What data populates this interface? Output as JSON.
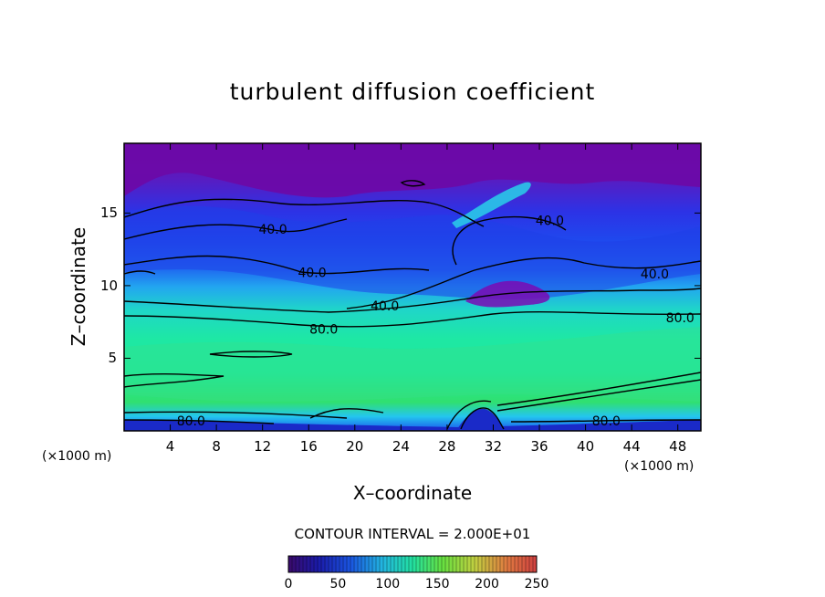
{
  "chart_data": {
    "type": "heatmap",
    "title": "turbulent diffusion coefficient",
    "xlabel": "X–coordinate",
    "ylabel": "Z–coordinate",
    "x_unit": "(×1000 m)",
    "x_unit_right": "(×1000 m)",
    "xlim": [
      0,
      50
    ],
    "ylim": [
      0,
      19.8
    ],
    "x_ticks": [
      4,
      8,
      12,
      16,
      20,
      24,
      28,
      32,
      36,
      40,
      44,
      48
    ],
    "y_ticks": [
      5,
      10,
      15
    ],
    "contour_interval_text": "CONTOUR INTERVAL = 2.000E+01",
    "contour_interval": 20,
    "contour_labels": [
      {
        "text": "40.0",
        "x": 12.9,
        "z": 13.9
      },
      {
        "text": "40.0",
        "x": 16.3,
        "z": 10.9
      },
      {
        "text": "40.0",
        "x": 22.6,
        "z": 8.6
      },
      {
        "text": "40.0",
        "x": 36.9,
        "z": 14.5
      },
      {
        "text": "40.0",
        "x": 46.0,
        "z": 10.8
      },
      {
        "text": "80.0",
        "x": 17.3,
        "z": 7.0
      },
      {
        "text": "80.0",
        "x": 48.2,
        "z": 7.8
      },
      {
        "text": "80.0",
        "x": 5.8,
        "z": 0.7
      },
      {
        "text": "80.0",
        "x": 41.8,
        "z": 0.7
      }
    ],
    "colorbar": {
      "ticks": [
        "0",
        "50",
        "100",
        "150",
        "200",
        "250"
      ],
      "range": [
        0,
        250
      ]
    }
  }
}
